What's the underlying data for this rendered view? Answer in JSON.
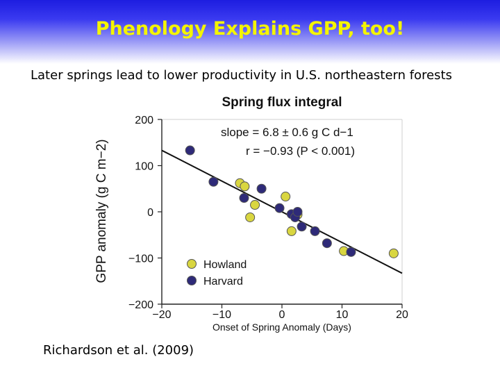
{
  "slide": {
    "title": "Phenology Explains GPP, too!",
    "subtitle": "Later springs lead to lower productivity in U.S. northeastern forests",
    "citation": "Richardson et al. (2009)"
  },
  "colors": {
    "title_text": "#f4f400",
    "howland": "#d9d640",
    "harvard": "#2e2a78",
    "regression_line": "#111111"
  },
  "chart_data": {
    "type": "scatter",
    "title": "Spring flux integral",
    "xlabel": "Onset of Spring Anomaly (Days)",
    "ylabel": "GPP anomaly (g C m−2)",
    "xlim": [
      -20,
      20
    ],
    "ylim": [
      -200,
      200
    ],
    "x_ticks": [
      "−20",
      "−10",
      "0",
      "10",
      "20"
    ],
    "y_ticks": [
      "200",
      "100",
      "0",
      "−100",
      "−200"
    ],
    "x_tick_values": [
      -20,
      -10,
      0,
      10,
      20
    ],
    "y_tick_values": [
      200,
      100,
      0,
      -100,
      -200
    ],
    "annotations": {
      "slope": "slope = 6.8 ± 0.6 g C d−1",
      "r": "r = −0.93 (P < 0.001)"
    },
    "regression": {
      "x": [
        -20,
        20
      ],
      "y": [
        133,
        -133
      ]
    },
    "legend": {
      "placement": "bottom-left"
    },
    "series": [
      {
        "name": "Howland",
        "color": "#d9d640",
        "points": [
          [
            -7,
            62
          ],
          [
            -6.2,
            55
          ],
          [
            -4.5,
            15
          ],
          [
            -5.3,
            -12
          ],
          [
            0.6,
            33
          ],
          [
            1.6,
            -42
          ],
          [
            2.6,
            -6
          ],
          [
            10.3,
            -85
          ],
          [
            18.6,
            -90
          ]
        ]
      },
      {
        "name": "Harvard",
        "color": "#2e2a78",
        "points": [
          [
            -15.3,
            133
          ],
          [
            -11.4,
            65
          ],
          [
            -6.3,
            30
          ],
          [
            -3.4,
            50
          ],
          [
            -0.4,
            8
          ],
          [
            1.6,
            -5
          ],
          [
            2.2,
            -12
          ],
          [
            3.3,
            -32
          ],
          [
            2.6,
            0
          ],
          [
            5.5,
            -42
          ],
          [
            7.5,
            -68
          ],
          [
            11.5,
            -87
          ]
        ]
      }
    ]
  }
}
